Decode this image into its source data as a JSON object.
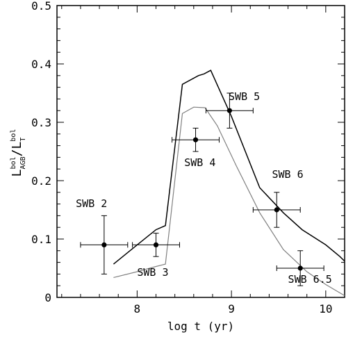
{
  "chart_data": {
    "type": "line",
    "title": "",
    "xlabel": "log t (yr)",
    "ylabel": {
      "num_base": "L",
      "num_sup": "bol",
      "num_sub": "AGB",
      "sep": "/",
      "den_base": "L",
      "den_sup": "bol",
      "den_sub": "T"
    },
    "xlim": [
      7.15,
      10.2
    ],
    "ylim": [
      0,
      0.5
    ],
    "x_ticks": [
      8,
      9,
      10
    ],
    "x_tick_labels": [
      "8",
      "9",
      "10"
    ],
    "y_ticks": [
      0,
      0.1,
      0.2,
      0.3,
      0.4,
      0.5
    ],
    "y_tick_labels": [
      "0",
      "0.1",
      "0.2",
      "0.3",
      "0.4",
      "0.5"
    ],
    "series": [
      {
        "name": "",
        "color": "#000000",
        "points": [
          [
            7.75,
            0.057
          ],
          [
            8.0,
            0.09
          ],
          [
            8.2,
            0.116
          ],
          [
            8.3,
            0.123
          ],
          [
            8.48,
            0.365
          ],
          [
            8.65,
            0.38
          ],
          [
            8.71,
            0.383
          ],
          [
            8.78,
            0.389
          ],
          [
            9.0,
            0.31
          ],
          [
            9.3,
            0.188
          ],
          [
            9.55,
            0.145
          ],
          [
            9.75,
            0.116
          ],
          [
            10.0,
            0.09
          ],
          [
            10.15,
            0.07
          ],
          [
            10.2,
            0.062
          ]
        ]
      },
      {
        "name": "",
        "color": "#808080",
        "points": [
          [
            7.75,
            0.034
          ],
          [
            8.0,
            0.044
          ],
          [
            8.2,
            0.053
          ],
          [
            8.3,
            0.057
          ],
          [
            8.48,
            0.315
          ],
          [
            8.6,
            0.326
          ],
          [
            8.72,
            0.325
          ],
          [
            8.85,
            0.294
          ],
          [
            9.05,
            0.226
          ],
          [
            9.3,
            0.145
          ],
          [
            9.55,
            0.082
          ],
          [
            9.8,
            0.044
          ],
          [
            10.0,
            0.022
          ],
          [
            10.2,
            0.003
          ]
        ]
      }
    ],
    "points": [
      {
        "label": "SWB 2",
        "x": 7.65,
        "y": 0.09,
        "xerr": 0.25,
        "yerr": 0.05
      },
      {
        "label": "SWB 3",
        "x": 8.2,
        "y": 0.09,
        "xerr": 0.25,
        "yerr": 0.02
      },
      {
        "label": "SWB 4",
        "x": 8.62,
        "y": 0.27,
        "xerr": 0.25,
        "yerr": 0.02
      },
      {
        "label": "SWB 5",
        "x": 8.98,
        "y": 0.32,
        "xerr": 0.25,
        "yerr": 0.03
      },
      {
        "label": "SWB 6",
        "x": 9.48,
        "y": 0.15,
        "xerr": 0.25,
        "yerr": 0.03
      },
      {
        "label": "SWB 6.5",
        "x": 9.73,
        "y": 0.05,
        "xerr": 0.25,
        "yerr": 0.03
      }
    ],
    "annotations": [
      {
        "text": "SWB 2",
        "x": 7.35,
        "y": 0.155
      },
      {
        "text": "SWB 3",
        "x": 8.0,
        "y": 0.037
      },
      {
        "text": "SWB 4",
        "x": 8.5,
        "y": 0.225
      },
      {
        "text": "SWB 5",
        "x": 8.97,
        "y": 0.338
      },
      {
        "text": "SWB 6",
        "x": 9.43,
        "y": 0.205
      },
      {
        "text": "SWB 6.5",
        "x": 9.6,
        "y": 0.025
      }
    ],
    "grid": false,
    "legend": "none"
  }
}
